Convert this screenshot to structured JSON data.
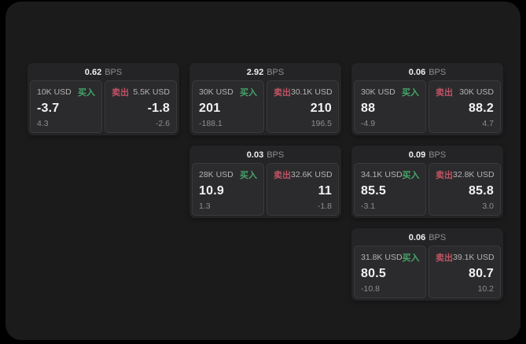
{
  "labels": {
    "buy": "买入",
    "sell": "卖出",
    "bps_unit": "BPS"
  },
  "colors": {
    "buy_green": "#46a56a",
    "sell_red": "#c05364",
    "value_white": "#f2f2f2",
    "panel_bg": "#1b1b1c",
    "card_bg": "#242426",
    "tile_bg": "#2b2b2d"
  },
  "cards": [
    {
      "bps": "0.62",
      "buy": {
        "size": "10K USD",
        "price": "-3.7",
        "change": "4.3"
      },
      "sell": {
        "size": "5.5K USD",
        "price": "-1.8",
        "change": "-2.6"
      }
    },
    {
      "bps": "2.92",
      "buy": {
        "size": "30K USD",
        "price": "201",
        "change": "-188.1"
      },
      "sell": {
        "size": "30.1K USD",
        "price": "210",
        "change": "196.5"
      }
    },
    {
      "bps": "0.06",
      "buy": {
        "size": "30K USD",
        "price": "88",
        "change": "-4.9"
      },
      "sell": {
        "size": "30K USD",
        "price": "88.2",
        "change": "4.7"
      }
    },
    {
      "bps": "0.03",
      "buy": {
        "size": "28K USD",
        "price": "10.9",
        "change": "1.3"
      },
      "sell": {
        "size": "32.6K USD",
        "price": "11",
        "change": "-1.8"
      }
    },
    {
      "bps": "0.09",
      "buy": {
        "size": "34.1K USD",
        "price": "85.5",
        "change": "-3.1"
      },
      "sell": {
        "size": "32.8K USD",
        "price": "85.8",
        "change": "3.0"
      }
    },
    {
      "bps": "0.06",
      "buy": {
        "size": "31.8K USD",
        "price": "80.5",
        "change": "-10.8"
      },
      "sell": {
        "size": "39.1K USD",
        "price": "80.7",
        "change": "10.2"
      }
    }
  ]
}
